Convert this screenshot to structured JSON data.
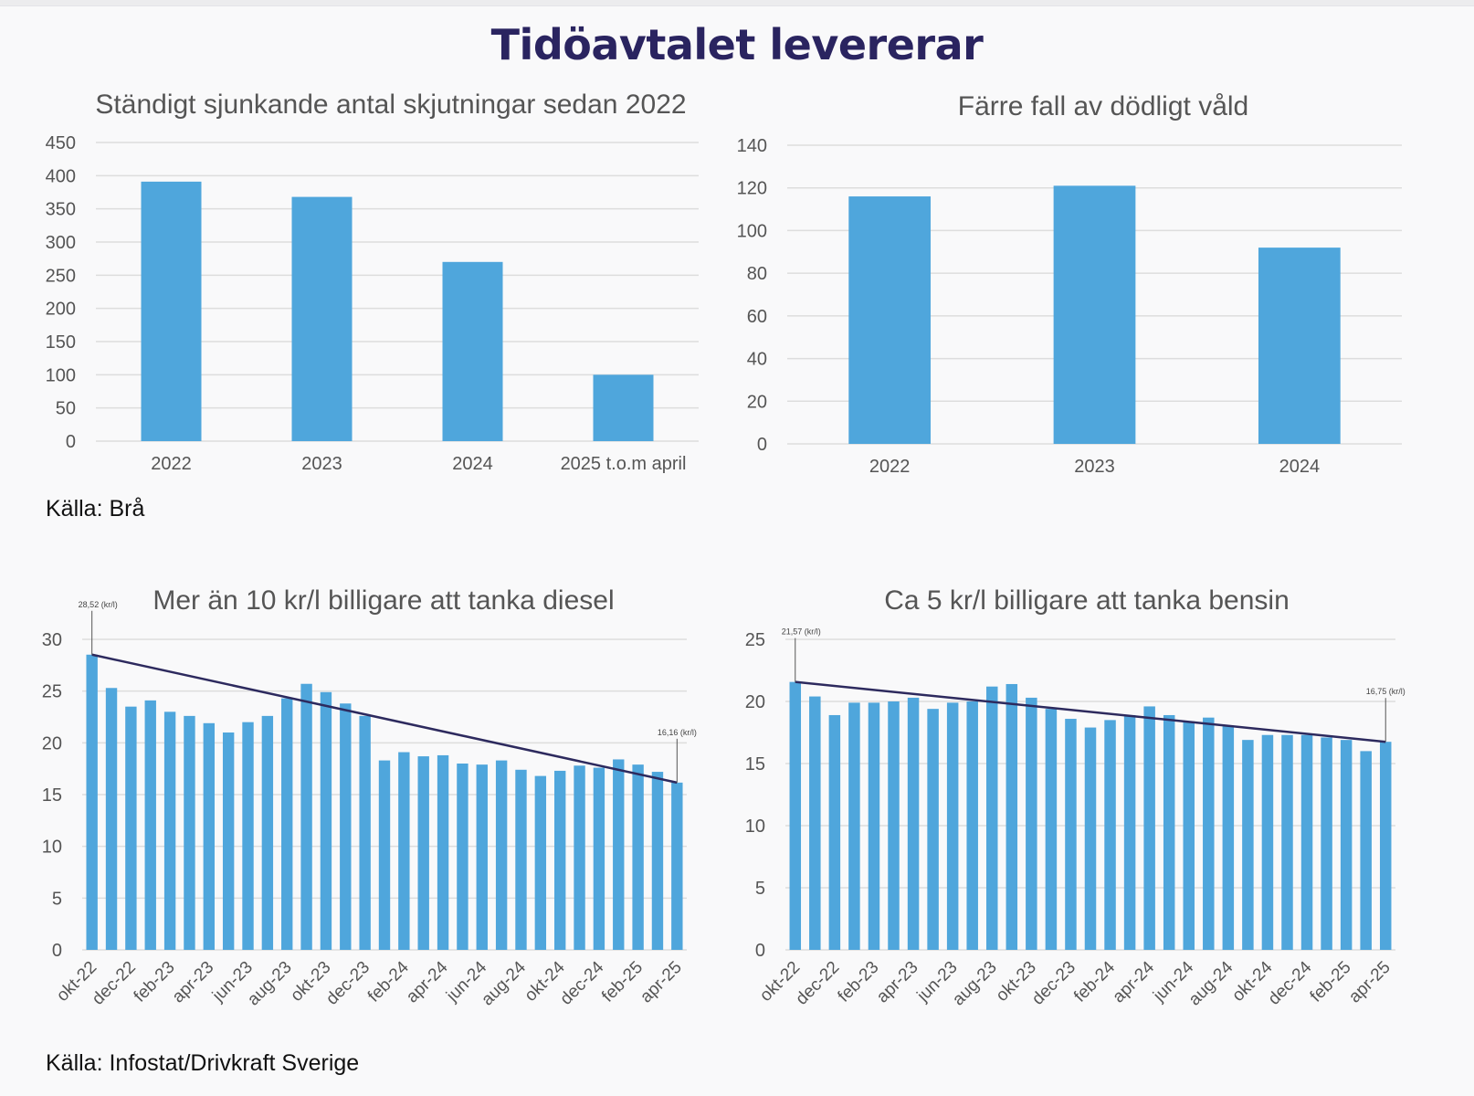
{
  "page": {
    "title": "Tidöavtalet levererar",
    "source_top": "Källa: Brå",
    "source_bottom": "Källa: Infostat/Drivkraft Sverige"
  },
  "colors": {
    "bar": "#4fa6dc",
    "trend": "#2d2a5e",
    "grid": "#dddddd",
    "title": "#2a2460"
  },
  "chart_data": [
    {
      "type": "bar",
      "title": "Ständigt sjunkande antal skjutningar sedan 2022",
      "categories": [
        "2022",
        "2023",
        "2024",
        "2025 t.o.m april"
      ],
      "values": [
        391,
        368,
        270,
        100
      ],
      "ylim": [
        0,
        450
      ],
      "yticks": [
        0,
        50,
        100,
        150,
        200,
        250,
        300,
        350,
        400,
        450
      ],
      "grid": true
    },
    {
      "type": "bar",
      "title": "Färre fall av dödligt våld",
      "categories": [
        "2022",
        "2023",
        "2024"
      ],
      "values": [
        116,
        121,
        92
      ],
      "ylim": [
        0,
        140
      ],
      "yticks": [
        0,
        20,
        40,
        60,
        80,
        100,
        120,
        140
      ],
      "grid": true
    },
    {
      "type": "bar",
      "title": "Mer än 10 kr/l billigare att tanka diesel",
      "categories": [
        "okt-22",
        "nov-22",
        "dec-22",
        "jan-23",
        "feb-23",
        "mar-23",
        "apr-23",
        "maj-23",
        "jun-23",
        "jul-23",
        "aug-23",
        "sep-23",
        "okt-23",
        "nov-23",
        "dec-23",
        "jan-24",
        "feb-24",
        "mar-24",
        "apr-24",
        "maj-24",
        "jun-24",
        "jul-24",
        "aug-24",
        "sep-24",
        "okt-24",
        "nov-24",
        "dec-24",
        "jan-25",
        "feb-25",
        "mar-25",
        "apr-25"
      ],
      "xtick_labels": [
        "okt-22",
        "dec-22",
        "feb-23",
        "apr-23",
        "jun-23",
        "aug-23",
        "okt-23",
        "dec-23",
        "feb-24",
        "apr-24",
        "jun-24",
        "aug-24",
        "okt-24",
        "dec-24",
        "feb-25",
        "apr-25"
      ],
      "values": [
        28.52,
        25.3,
        23.5,
        24.1,
        23.0,
        22.6,
        21.9,
        21.0,
        22.0,
        22.6,
        24.3,
        25.7,
        24.9,
        23.8,
        22.6,
        18.3,
        19.1,
        18.7,
        18.8,
        18.0,
        17.9,
        18.3,
        17.4,
        16.8,
        17.3,
        17.8,
        17.6,
        18.4,
        17.9,
        17.2,
        16.16
      ],
      "trend": {
        "start": 28.52,
        "end": 16.16
      },
      "annotations": [
        {
          "category": "okt-22",
          "label": "28,52 (kr/l)"
        },
        {
          "category": "apr-25",
          "label": "16,16 (kr/l)"
        }
      ],
      "ylim": [
        0,
        30
      ],
      "yticks": [
        0,
        5,
        10,
        15,
        20,
        25,
        30
      ],
      "grid": true
    },
    {
      "type": "bar",
      "title": "Ca 5 kr/l billigare att tanka bensin",
      "categories": [
        "okt-22",
        "nov-22",
        "dec-22",
        "jan-23",
        "feb-23",
        "mar-23",
        "apr-23",
        "maj-23",
        "jun-23",
        "jul-23",
        "aug-23",
        "sep-23",
        "okt-23",
        "nov-23",
        "dec-23",
        "jan-24",
        "feb-24",
        "mar-24",
        "apr-24",
        "maj-24",
        "jun-24",
        "jul-24",
        "aug-24",
        "sep-24",
        "okt-24",
        "nov-24",
        "dec-24",
        "jan-25",
        "feb-25",
        "mar-25",
        "apr-25"
      ],
      "xtick_labels": [
        "okt-22",
        "dec-22",
        "feb-23",
        "apr-23",
        "jun-23",
        "aug-23",
        "okt-23",
        "dec-23",
        "feb-24",
        "apr-24",
        "jun-24",
        "aug-24",
        "okt-24",
        "dec-24",
        "feb-25",
        "apr-25"
      ],
      "values": [
        21.57,
        20.4,
        18.9,
        19.9,
        19.9,
        20.0,
        20.3,
        19.4,
        19.9,
        20.0,
        21.2,
        21.4,
        20.3,
        19.4,
        18.6,
        17.9,
        18.5,
        18.9,
        19.6,
        18.9,
        18.4,
        18.7,
        18.0,
        16.9,
        17.3,
        17.3,
        17.3,
        17.1,
        16.9,
        16.0,
        16.75
      ],
      "trend": {
        "start": 21.57,
        "end": 16.75
      },
      "annotations": [
        {
          "category": "okt-22",
          "label": "21,57 (kr/l)"
        },
        {
          "category": "apr-25",
          "label": "16,75 (kr/l)"
        }
      ],
      "ylim": [
        0,
        25
      ],
      "yticks": [
        0,
        5,
        10,
        15,
        20,
        25
      ],
      "grid": true
    }
  ]
}
